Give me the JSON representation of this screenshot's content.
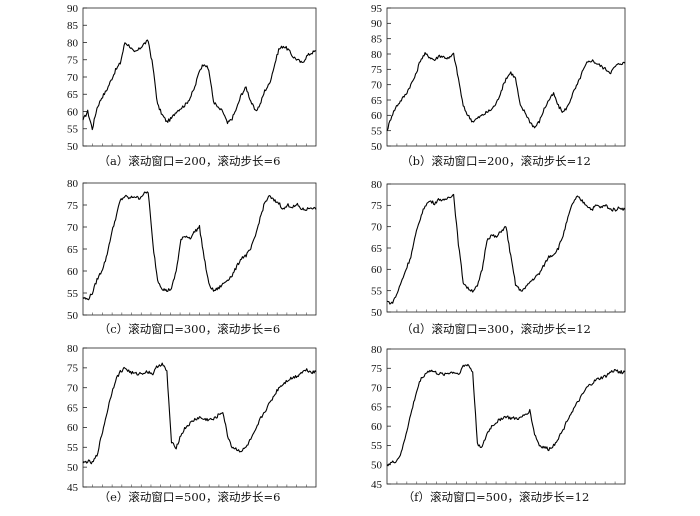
{
  "chart_data": [
    {
      "type": "line",
      "caption": "（a）滚动窗口=200，滚动步长=6",
      "ylim": [
        50,
        90
      ],
      "yticks": [
        50,
        55,
        60,
        65,
        70,
        75,
        80,
        85,
        90
      ],
      "grid": false,
      "x": [
        0,
        10,
        20,
        30,
        40,
        50,
        60,
        70,
        80,
        90,
        100,
        110,
        120,
        130,
        140,
        150,
        160,
        170,
        180,
        190,
        200,
        210,
        220,
        230,
        240,
        250,
        260,
        270,
        280,
        290,
        300,
        310,
        320,
        330,
        340,
        350,
        360,
        370,
        380,
        390,
        400,
        410,
        420,
        430,
        440,
        450,
        460,
        470,
        480,
        490,
        500
      ],
      "values": [
        57.5,
        60,
        55,
        61,
        64,
        66,
        69,
        72,
        74,
        80,
        79,
        77,
        78,
        79.5,
        80.5,
        73,
        62,
        59,
        57,
        58,
        60,
        61,
        62,
        64,
        67,
        72,
        74,
        72,
        63,
        61,
        60,
        56.5,
        58,
        61,
        65,
        67,
        63,
        60,
        62,
        66,
        68,
        73,
        78,
        79,
        78,
        76,
        75,
        74,
        76,
        77,
        77.5
      ]
    },
    {
      "type": "line",
      "caption": "（b）滚动窗口=200，滚动步长=12",
      "ylim": [
        50,
        95
      ],
      "yticks": [
        50,
        55,
        60,
        65,
        70,
        75,
        80,
        85,
        90,
        95
      ],
      "grid": false,
      "x": [
        0,
        10,
        20,
        30,
        40,
        50,
        60,
        70,
        80,
        90,
        100,
        110,
        120,
        130,
        140,
        150,
        160,
        170,
        180,
        190,
        200,
        210,
        220,
        230,
        240,
        250,
        260,
        270,
        280,
        290,
        300,
        310,
        320,
        330,
        340,
        350,
        360,
        370,
        380,
        390,
        400,
        410,
        420,
        430,
        440,
        450,
        460,
        470,
        480,
        490,
        500
      ],
      "values": [
        55,
        60,
        63,
        65,
        67,
        70,
        73,
        78,
        80,
        79,
        78,
        79.5,
        79,
        78.5,
        80,
        72,
        63,
        60,
        58,
        59,
        60,
        61,
        62,
        64,
        68,
        72,
        74,
        72,
        63,
        61,
        58,
        56,
        58,
        62,
        65,
        67,
        63,
        61,
        63,
        67,
        70,
        74,
        77,
        78,
        77,
        76,
        75,
        74,
        76,
        77,
        77
      ]
    },
    {
      "type": "line",
      "caption": "（c）滚动窗口=300，滚动步长=6",
      "ylim": [
        50,
        80
      ],
      "yticks": [
        50,
        55,
        60,
        65,
        70,
        75,
        80
      ],
      "grid": false,
      "x": [
        0,
        10,
        20,
        30,
        40,
        50,
        60,
        70,
        80,
        90,
        100,
        110,
        120,
        130,
        140,
        150,
        160,
        170,
        180,
        190,
        200,
        210,
        220,
        230,
        240,
        250,
        260,
        270,
        280,
        290,
        300,
        310,
        320,
        330,
        340,
        350,
        360,
        370,
        380,
        390,
        400,
        410,
        420,
        430,
        440,
        450,
        460,
        470,
        480,
        490,
        500
      ],
      "values": [
        54,
        53.5,
        55,
        58,
        60,
        63,
        68,
        72,
        76,
        77,
        76.5,
        77,
        76.5,
        77.5,
        78,
        66,
        58,
        56,
        55.5,
        56,
        60,
        67,
        68,
        67.5,
        69,
        70,
        63,
        57,
        55.5,
        56,
        57,
        58,
        59,
        61,
        63,
        63.5,
        65,
        68,
        72,
        75.5,
        77,
        76,
        75.5,
        74,
        75,
        74.5,
        75,
        74,
        74,
        74.5,
        74
      ]
    },
    {
      "type": "line",
      "caption": "（d）滚动窗口=300，滚动步长=12",
      "ylim": [
        50,
        80
      ],
      "yticks": [
        50,
        55,
        60,
        65,
        70,
        75,
        80
      ],
      "grid": false,
      "x": [
        0,
        10,
        20,
        30,
        40,
        50,
        60,
        70,
        80,
        90,
        100,
        110,
        120,
        130,
        140,
        150,
        160,
        170,
        180,
        190,
        200,
        210,
        220,
        230,
        240,
        250,
        260,
        270,
        280,
        290,
        300,
        310,
        320,
        330,
        340,
        350,
        360,
        370,
        380,
        390,
        400,
        410,
        420,
        430,
        440,
        450,
        460,
        470,
        480,
        490,
        500
      ],
      "values": [
        52.5,
        52,
        54,
        57,
        60,
        63,
        68,
        72,
        75,
        76,
        75.5,
        76.5,
        76,
        77,
        77.5,
        66,
        57,
        55.5,
        55,
        56,
        60,
        67,
        68,
        67.5,
        69,
        70,
        63,
        56.5,
        55,
        55.5,
        57,
        58,
        59,
        61,
        63,
        63.5,
        65,
        68,
        72,
        75.5,
        77,
        76,
        75,
        74,
        75,
        74.5,
        75,
        74,
        74,
        74.5,
        74
      ]
    },
    {
      "type": "line",
      "caption": "（e）滚动窗口=500，滚动步长=6",
      "ylim": [
        45,
        80
      ],
      "yticks": [
        45,
        50,
        55,
        60,
        65,
        70,
        75,
        80
      ],
      "grid": false,
      "x": [
        0,
        10,
        20,
        30,
        40,
        50,
        60,
        70,
        80,
        90,
        100,
        110,
        120,
        130,
        140,
        150,
        160,
        170,
        180,
        190,
        200,
        210,
        220,
        230,
        240,
        250,
        260,
        270,
        280,
        290,
        300,
        310,
        320,
        330,
        340,
        350,
        360,
        370,
        380,
        390,
        400,
        410,
        420,
        430,
        440,
        450,
        460,
        470,
        480,
        490,
        500
      ],
      "values": [
        51,
        51.5,
        51,
        53,
        58,
        63,
        68,
        72,
        74,
        75,
        74,
        73.5,
        73.5,
        73.8,
        74,
        73.5,
        75.5,
        76,
        74,
        56,
        55,
        58,
        60,
        61,
        62,
        62.5,
        62,
        62,
        62,
        63,
        64,
        58,
        55,
        54.5,
        54,
        55,
        57,
        59,
        62,
        64,
        66,
        68,
        70,
        71,
        72,
        72.5,
        73,
        74,
        74.5,
        74,
        74
      ]
    },
    {
      "type": "line",
      "caption": "（f）滚动窗口=500，滚动步长=12",
      "ylim": [
        45,
        80
      ],
      "yticks": [
        45,
        50,
        55,
        60,
        65,
        70,
        75,
        80
      ],
      "grid": false,
      "x": [
        0,
        10,
        20,
        30,
        40,
        50,
        60,
        70,
        80,
        90,
        100,
        110,
        120,
        130,
        140,
        150,
        160,
        170,
        180,
        190,
        200,
        210,
        220,
        230,
        240,
        250,
        260,
        270,
        280,
        290,
        300,
        310,
        320,
        330,
        340,
        350,
        360,
        370,
        380,
        390,
        400,
        410,
        420,
        430,
        440,
        450,
        460,
        470,
        480,
        490,
        500
      ],
      "values": [
        50,
        50.5,
        51,
        53,
        58,
        63,
        68,
        72,
        73.5,
        74.5,
        74,
        73.5,
        73.5,
        73.8,
        74,
        73.5,
        75.5,
        76,
        74,
        55.5,
        54.5,
        58,
        60,
        61,
        62,
        62.5,
        62,
        62,
        62,
        63,
        64,
        58,
        55,
        54.5,
        54,
        55,
        57,
        59,
        62,
        64,
        66,
        68,
        70,
        71,
        72,
        72.5,
        73,
        74,
        74.5,
        74,
        74
      ]
    }
  ]
}
